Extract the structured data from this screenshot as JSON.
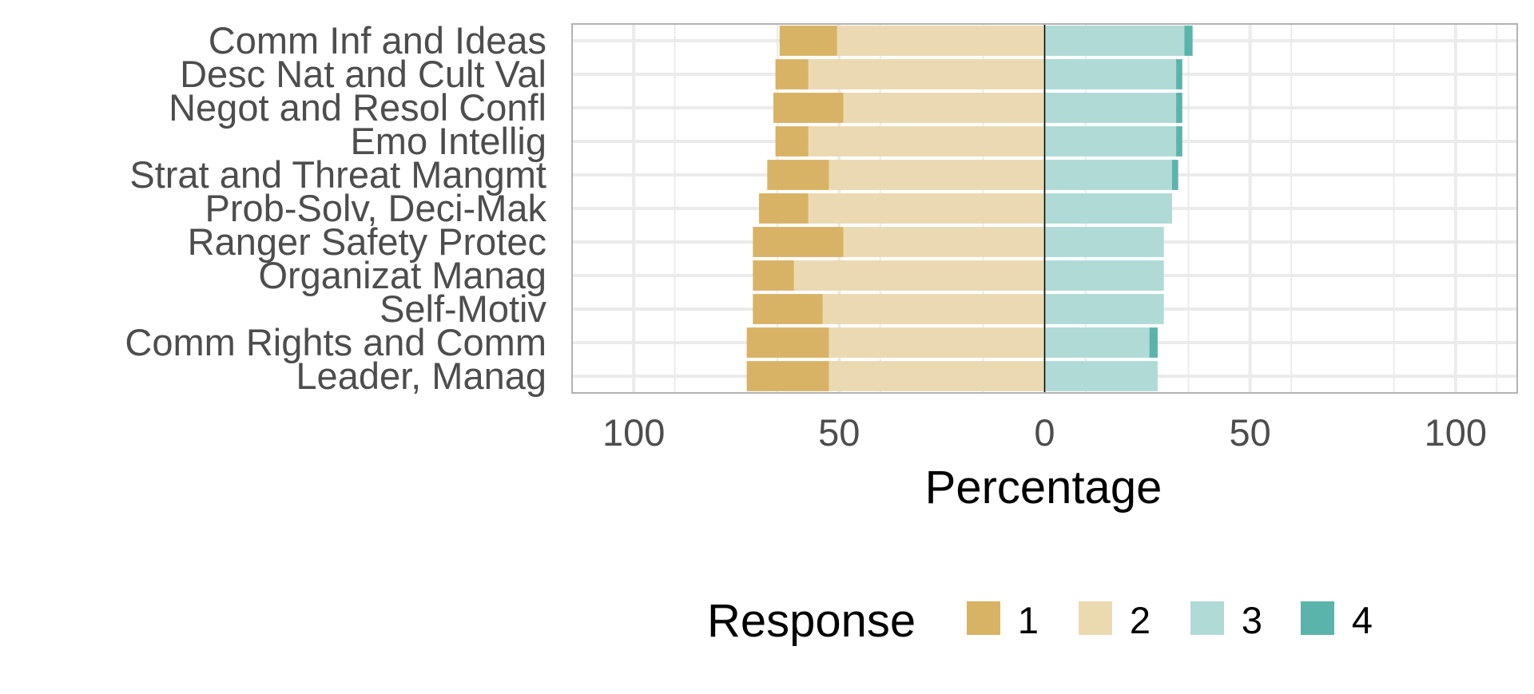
{
  "chart_data": {
    "type": "bar",
    "orientation": "horizontal",
    "stacking": "diverging",
    "xlabel": "Percentage",
    "xlim": [
      -115,
      115
    ],
    "x_ticks": [
      -100,
      -50,
      0,
      50,
      100
    ],
    "x_tick_labels": [
      "100",
      "50",
      "0",
      "50",
      "100"
    ],
    "grid": true,
    "legend": {
      "title": "Response",
      "position": "bottom",
      "entries": [
        "1",
        "2",
        "3",
        "4"
      ]
    },
    "categories": [
      "Comm Inf and Ideas",
      "Desc Nat and Cult Val",
      "Negot and Resol Confl",
      "Emo Intellig",
      "Strat and Threat Mangmt",
      "Prob-Solv, Deci-Mak",
      "Ranger Safety Protec",
      "Organizat Manag",
      "Self-Motiv",
      "Comm Rights and Comm",
      "Leader, Manag"
    ],
    "series": [
      {
        "name": "1",
        "color": "#d8b365",
        "side": "negative",
        "values": [
          14,
          8,
          17,
          8,
          15,
          12,
          22,
          10,
          17,
          20,
          20
        ]
      },
      {
        "name": "2",
        "color": "#ebd9b2",
        "side": "negative",
        "values": [
          50.5,
          57.5,
          49,
          57.5,
          52.5,
          57.5,
          49,
          61,
          54,
          52.5,
          52.5
        ]
      },
      {
        "name": "3",
        "color": "#afdad6",
        "side": "positive",
        "values": [
          34,
          32,
          32,
          32,
          31,
          31,
          29,
          29,
          29,
          25.5,
          27.5
        ]
      },
      {
        "name": "4",
        "color": "#5ab4ac",
        "side": "positive",
        "values": [
          2,
          1.5,
          1.5,
          1.5,
          1.5,
          0,
          0,
          0,
          0,
          2,
          0
        ]
      }
    ]
  }
}
